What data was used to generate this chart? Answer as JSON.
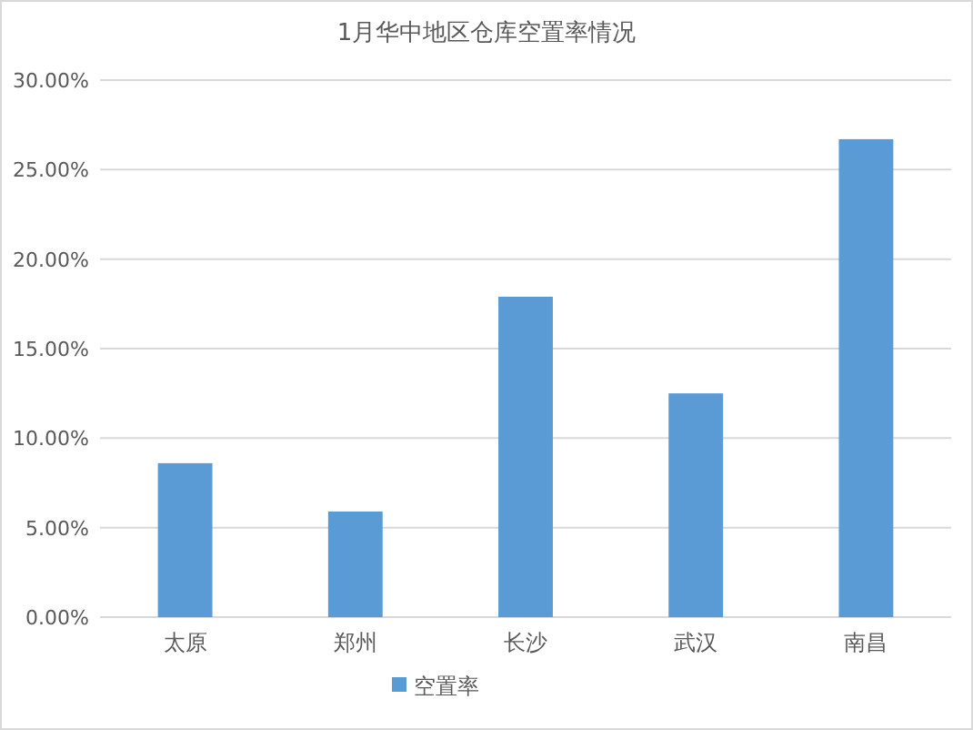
{
  "chart_data": {
    "type": "bar",
    "title": "1月华中地区仓库空置率情况",
    "categories": [
      "太原",
      "郑州",
      "长沙",
      "武汉",
      "南昌"
    ],
    "series": [
      {
        "name": "空置率",
        "color": "#5b9bd5",
        "values": [
          8.6,
          5.9,
          17.9,
          12.5,
          26.7
        ]
      }
    ],
    "ylim": [
      0,
      30
    ],
    "yticks": [
      {
        "value": 0,
        "label": "0.00%"
      },
      {
        "value": 5,
        "label": "5.00%"
      },
      {
        "value": 10,
        "label": "10.00%"
      },
      {
        "value": 15,
        "label": "15.00%"
      },
      {
        "value": 20,
        "label": "20.00%"
      },
      {
        "value": 25,
        "label": "25.00%"
      },
      {
        "value": 30,
        "label": "30.00%"
      }
    ],
    "grid": "y",
    "legend": "bottom"
  }
}
